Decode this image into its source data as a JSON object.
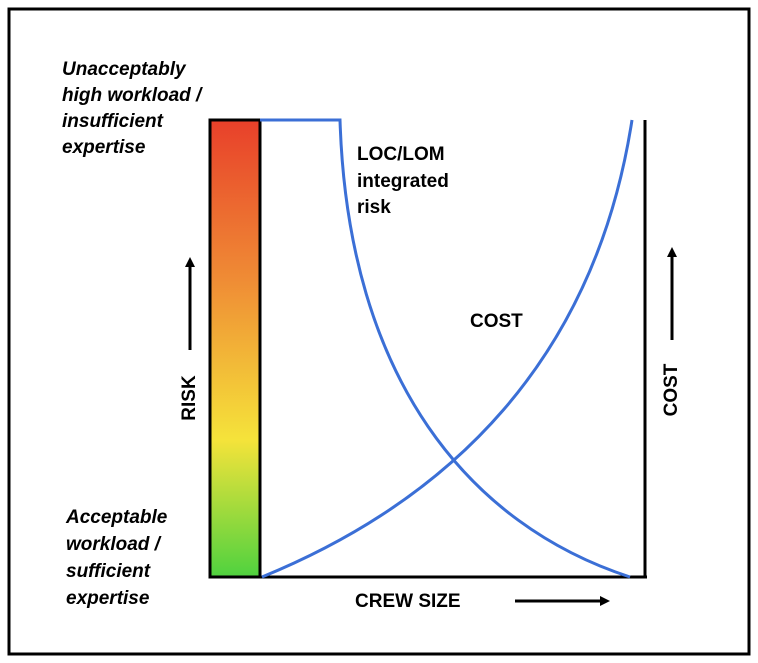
{
  "top_label": [
    "Unacceptably",
    "high workload /",
    "insufficient",
    "expertise"
  ],
  "bottom_label": [
    "Acceptable",
    "workload /",
    "sufficient",
    "expertise"
  ],
  "risk_curve_label": [
    "LOC/LOM",
    "integrated",
    "risk"
  ],
  "cost_curve_label": "COST",
  "y_axis_label": "RISK",
  "y2_axis_label": "COST",
  "x_axis_label": "CREW SIZE"
}
